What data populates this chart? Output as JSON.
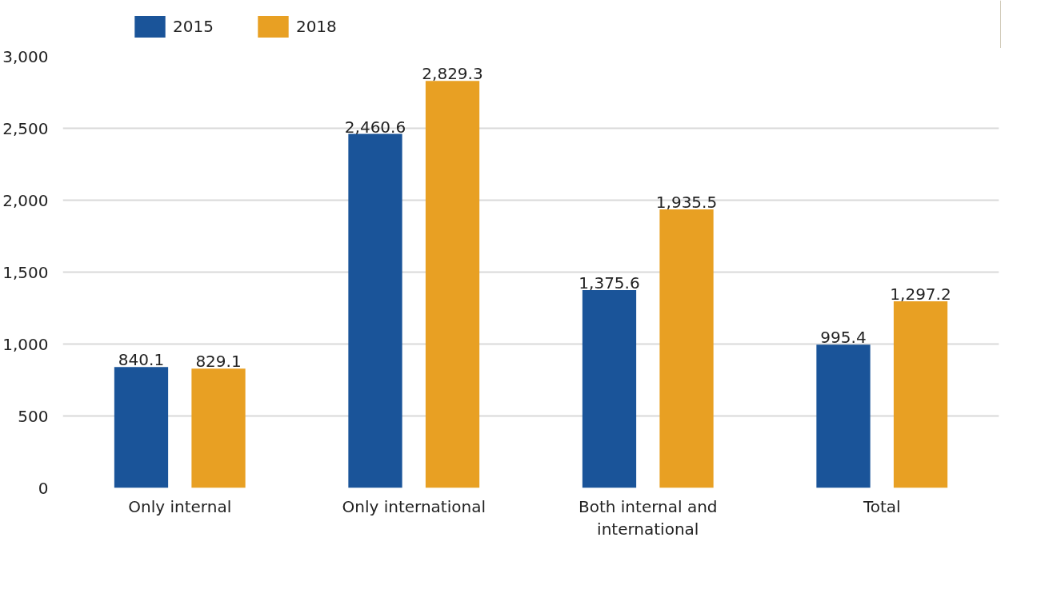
{
  "chart_data": {
    "type": "bar",
    "categories": [
      "Only internal",
      "Only international",
      "Both internal and international",
      "Total"
    ],
    "series": [
      {
        "name": "2015",
        "color": "#1a5499",
        "values": [
          840.1,
          2460.6,
          1375.6,
          995.4
        ],
        "value_labels": [
          "840.1",
          "2,460.6",
          "1,375.6",
          "995.4"
        ]
      },
      {
        "name": "2018",
        "color": "#e8a023",
        "values": [
          829.1,
          2829.3,
          1935.5,
          1297.2
        ],
        "value_labels": [
          "829.1",
          "2,829.3",
          "1,935.5",
          "1,297.2"
        ]
      }
    ],
    "ylim": [
      0,
      3000
    ],
    "yticks": [
      {
        "value": 0,
        "label": "0"
      },
      {
        "value": 500,
        "label": "500"
      },
      {
        "value": 1000,
        "label": "1,000"
      },
      {
        "value": 1500,
        "label": "1,500"
      },
      {
        "value": 2000,
        "label": "2,000"
      },
      {
        "value": 2500,
        "label": "2,500"
      },
      {
        "value": 3000,
        "label": "3,000"
      }
    ],
    "grid": "y",
    "legend": "top left"
  }
}
